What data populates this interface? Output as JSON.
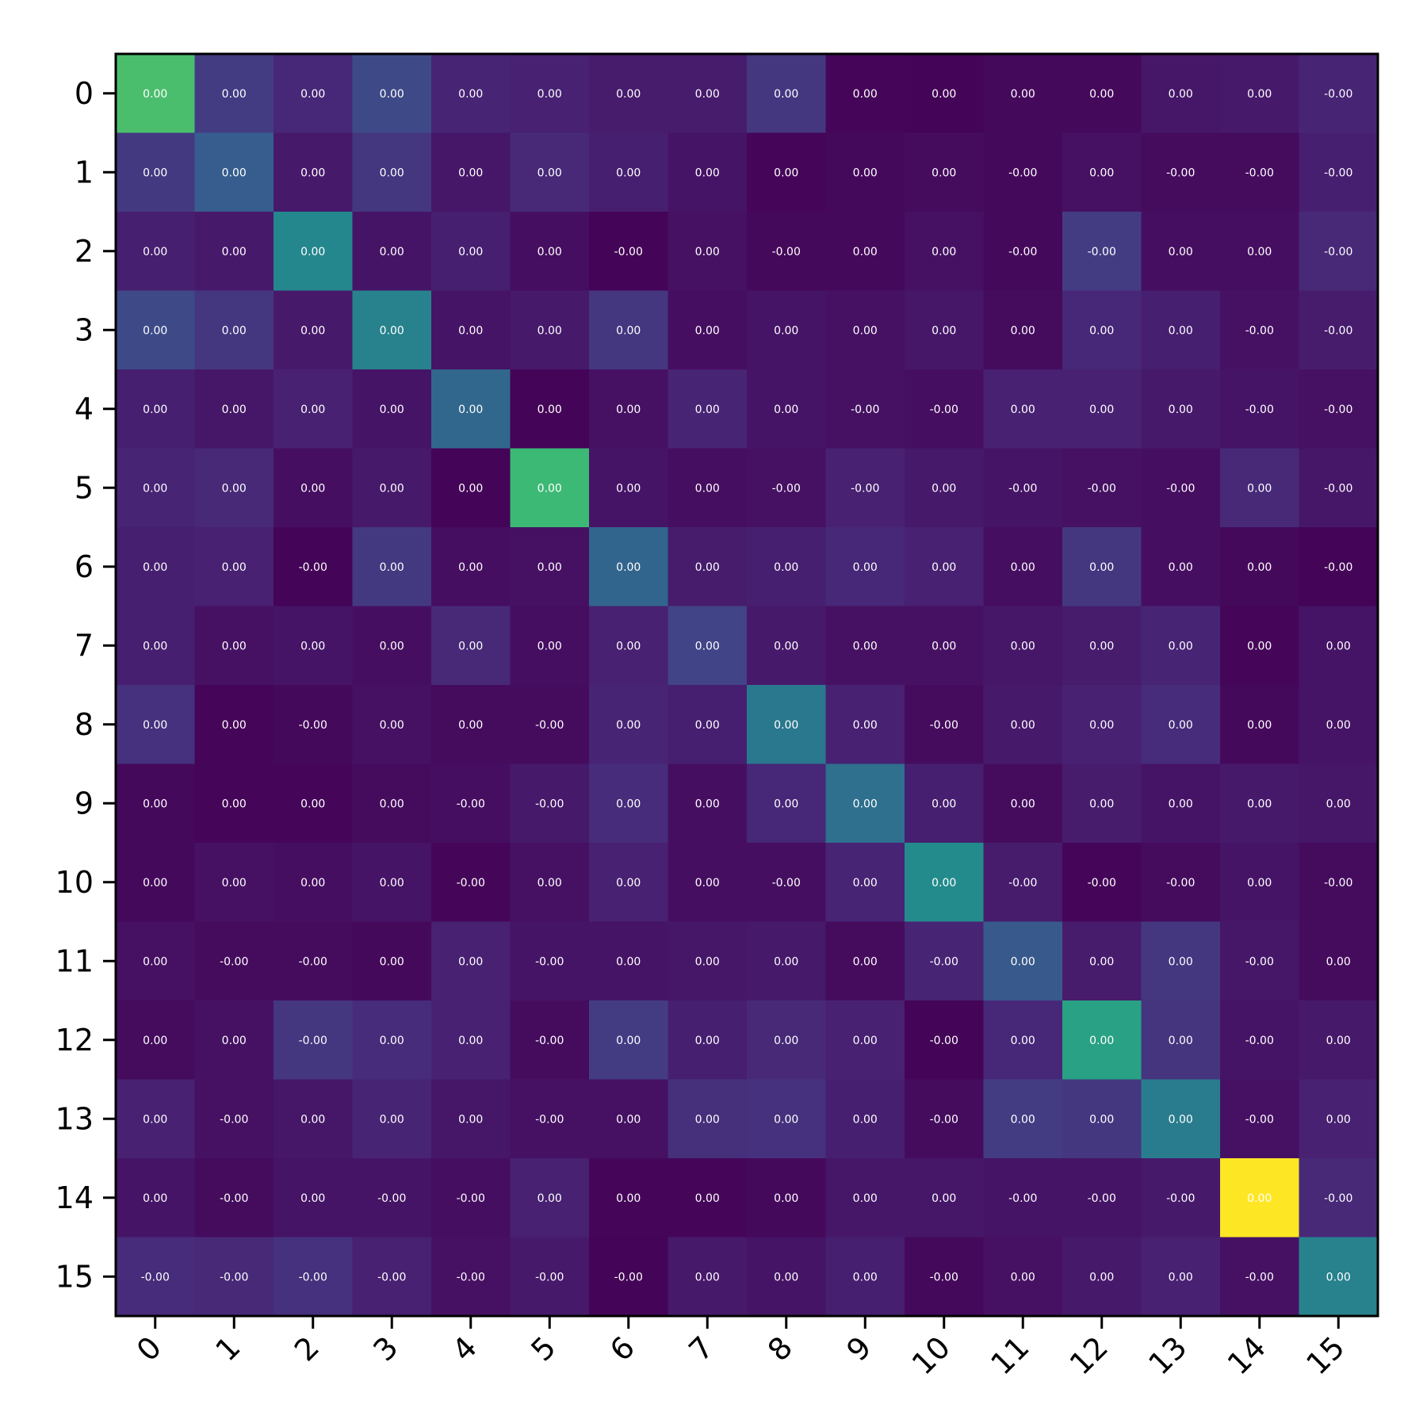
{
  "chart_data": {
    "type": "heatmap",
    "title": "",
    "xlabel": "",
    "ylabel": "",
    "colormap": "viridis",
    "x_categories": [
      "0",
      "1",
      "2",
      "3",
      "4",
      "5",
      "6",
      "7",
      "8",
      "9",
      "10",
      "11",
      "12",
      "13",
      "14",
      "15"
    ],
    "y_categories": [
      "0",
      "1",
      "2",
      "3",
      "4",
      "5",
      "6",
      "7",
      "8",
      "9",
      "10",
      "11",
      "12",
      "13",
      "14",
      "15"
    ],
    "color_intensity": [
      [
        0.78,
        0.22,
        0.14,
        0.28,
        0.13,
        0.12,
        0.1,
        0.1,
        0.2,
        0.02,
        0.01,
        0.03,
        0.03,
        0.08,
        0.09,
        0.13
      ],
      [
        0.21,
        0.37,
        0.09,
        0.2,
        0.08,
        0.15,
        0.11,
        0.07,
        0.02,
        0.03,
        0.04,
        0.03,
        0.06,
        0.04,
        0.04,
        0.11
      ],
      [
        0.11,
        0.09,
        0.58,
        0.07,
        0.11,
        0.05,
        0.01,
        0.06,
        0.03,
        0.03,
        0.06,
        0.03,
        0.22,
        0.05,
        0.05,
        0.15
      ],
      [
        0.28,
        0.2,
        0.09,
        0.55,
        0.07,
        0.09,
        0.2,
        0.05,
        0.07,
        0.06,
        0.08,
        0.04,
        0.14,
        0.11,
        0.06,
        0.1
      ],
      [
        0.11,
        0.08,
        0.12,
        0.07,
        0.42,
        0.01,
        0.06,
        0.13,
        0.07,
        0.06,
        0.05,
        0.12,
        0.12,
        0.09,
        0.07,
        0.06
      ],
      [
        0.13,
        0.15,
        0.05,
        0.09,
        0.01,
        0.76,
        0.07,
        0.05,
        0.06,
        0.12,
        0.09,
        0.07,
        0.06,
        0.05,
        0.15,
        0.08
      ],
      [
        0.11,
        0.12,
        0.01,
        0.21,
        0.05,
        0.06,
        0.41,
        0.1,
        0.11,
        0.14,
        0.12,
        0.05,
        0.2,
        0.05,
        0.03,
        0.01
      ],
      [
        0.11,
        0.06,
        0.07,
        0.05,
        0.15,
        0.05,
        0.12,
        0.25,
        0.09,
        0.06,
        0.06,
        0.08,
        0.1,
        0.13,
        0.02,
        0.07
      ],
      [
        0.18,
        0.02,
        0.03,
        0.06,
        0.04,
        0.04,
        0.13,
        0.11,
        0.5,
        0.12,
        0.04,
        0.09,
        0.12,
        0.16,
        0.03,
        0.07
      ],
      [
        0.03,
        0.02,
        0.02,
        0.04,
        0.05,
        0.09,
        0.16,
        0.05,
        0.14,
        0.46,
        0.11,
        0.04,
        0.1,
        0.07,
        0.09,
        0.08
      ],
      [
        0.03,
        0.06,
        0.05,
        0.07,
        0.02,
        0.06,
        0.12,
        0.05,
        0.05,
        0.13,
        0.6,
        0.1,
        0.02,
        0.04,
        0.07,
        0.04
      ],
      [
        0.06,
        0.04,
        0.04,
        0.03,
        0.12,
        0.07,
        0.07,
        0.08,
        0.09,
        0.04,
        0.13,
        0.35,
        0.1,
        0.2,
        0.08,
        0.04
      ],
      [
        0.04,
        0.06,
        0.2,
        0.16,
        0.12,
        0.04,
        0.22,
        0.11,
        0.15,
        0.12,
        0.01,
        0.14,
        0.68,
        0.19,
        0.07,
        0.09
      ],
      [
        0.12,
        0.06,
        0.08,
        0.13,
        0.08,
        0.06,
        0.06,
        0.17,
        0.18,
        0.11,
        0.04,
        0.22,
        0.2,
        0.52,
        0.06,
        0.12
      ],
      [
        0.07,
        0.04,
        0.07,
        0.07,
        0.05,
        0.12,
        0.02,
        0.02,
        0.03,
        0.08,
        0.08,
        0.07,
        0.07,
        0.09,
        1.0,
        0.15
      ],
      [
        0.16,
        0.15,
        0.18,
        0.12,
        0.06,
        0.09,
        0.01,
        0.09,
        0.07,
        0.11,
        0.03,
        0.06,
        0.09,
        0.12,
        0.06,
        0.55
      ]
    ],
    "cell_labels": [
      [
        "0.00",
        "0.00",
        "0.00",
        "0.00",
        "0.00",
        "0.00",
        "0.00",
        "0.00",
        "0.00",
        "0.00",
        "0.00",
        "0.00",
        "0.00",
        "0.00",
        "0.00",
        "-0.00"
      ],
      [
        "0.00",
        "0.00",
        "0.00",
        "0.00",
        "0.00",
        "0.00",
        "0.00",
        "0.00",
        "0.00",
        "0.00",
        "0.00",
        "-0.00",
        "0.00",
        "-0.00",
        "-0.00",
        "-0.00"
      ],
      [
        "0.00",
        "0.00",
        "0.00",
        "0.00",
        "0.00",
        "0.00",
        "-0.00",
        "0.00",
        "-0.00",
        "0.00",
        "0.00",
        "-0.00",
        "-0.00",
        "0.00",
        "0.00",
        "-0.00"
      ],
      [
        "0.00",
        "0.00",
        "0.00",
        "0.00",
        "0.00",
        "0.00",
        "0.00",
        "0.00",
        "0.00",
        "0.00",
        "0.00",
        "0.00",
        "0.00",
        "0.00",
        "-0.00",
        "-0.00"
      ],
      [
        "0.00",
        "0.00",
        "0.00",
        "0.00",
        "0.00",
        "0.00",
        "0.00",
        "0.00",
        "0.00",
        "-0.00",
        "-0.00",
        "0.00",
        "0.00",
        "0.00",
        "-0.00",
        "-0.00"
      ],
      [
        "0.00",
        "0.00",
        "0.00",
        "0.00",
        "0.00",
        "0.00",
        "0.00",
        "0.00",
        "-0.00",
        "-0.00",
        "0.00",
        "-0.00",
        "-0.00",
        "-0.00",
        "0.00",
        "-0.00"
      ],
      [
        "0.00",
        "0.00",
        "-0.00",
        "0.00",
        "0.00",
        "0.00",
        "0.00",
        "0.00",
        "0.00",
        "0.00",
        "0.00",
        "0.00",
        "0.00",
        "0.00",
        "0.00",
        "-0.00"
      ],
      [
        "0.00",
        "0.00",
        "0.00",
        "0.00",
        "0.00",
        "0.00",
        "0.00",
        "0.00",
        "0.00",
        "0.00",
        "0.00",
        "0.00",
        "0.00",
        "0.00",
        "0.00",
        "0.00"
      ],
      [
        "0.00",
        "0.00",
        "-0.00",
        "0.00",
        "0.00",
        "-0.00",
        "0.00",
        "0.00",
        "0.00",
        "0.00",
        "-0.00",
        "0.00",
        "0.00",
        "0.00",
        "0.00",
        "0.00"
      ],
      [
        "0.00",
        "0.00",
        "0.00",
        "0.00",
        "-0.00",
        "-0.00",
        "0.00",
        "0.00",
        "0.00",
        "0.00",
        "0.00",
        "0.00",
        "0.00",
        "0.00",
        "0.00",
        "0.00"
      ],
      [
        "0.00",
        "0.00",
        "0.00",
        "0.00",
        "-0.00",
        "0.00",
        "0.00",
        "0.00",
        "-0.00",
        "0.00",
        "0.00",
        "-0.00",
        "-0.00",
        "-0.00",
        "0.00",
        "-0.00"
      ],
      [
        "0.00",
        "-0.00",
        "-0.00",
        "0.00",
        "0.00",
        "-0.00",
        "0.00",
        "0.00",
        "0.00",
        "0.00",
        "-0.00",
        "0.00",
        "0.00",
        "0.00",
        "-0.00",
        "0.00"
      ],
      [
        "0.00",
        "0.00",
        "-0.00",
        "0.00",
        "0.00",
        "-0.00",
        "0.00",
        "0.00",
        "0.00",
        "0.00",
        "-0.00",
        "0.00",
        "0.00",
        "0.00",
        "-0.00",
        "0.00"
      ],
      [
        "0.00",
        "-0.00",
        "0.00",
        "0.00",
        "0.00",
        "-0.00",
        "0.00",
        "0.00",
        "0.00",
        "0.00",
        "-0.00",
        "0.00",
        "0.00",
        "0.00",
        "-0.00",
        "0.00"
      ],
      [
        "0.00",
        "-0.00",
        "0.00",
        "-0.00",
        "-0.00",
        "0.00",
        "0.00",
        "0.00",
        "0.00",
        "0.00",
        "0.00",
        "-0.00",
        "-0.00",
        "-0.00",
        "0.00",
        "-0.00"
      ],
      [
        "-0.00",
        "-0.00",
        "-0.00",
        "-0.00",
        "-0.00",
        "-0.00",
        "-0.00",
        "0.00",
        "0.00",
        "0.00",
        "-0.00",
        "0.00",
        "0.00",
        "0.00",
        "-0.00",
        "0.00"
      ]
    ],
    "grid": false,
    "legend": "none"
  }
}
